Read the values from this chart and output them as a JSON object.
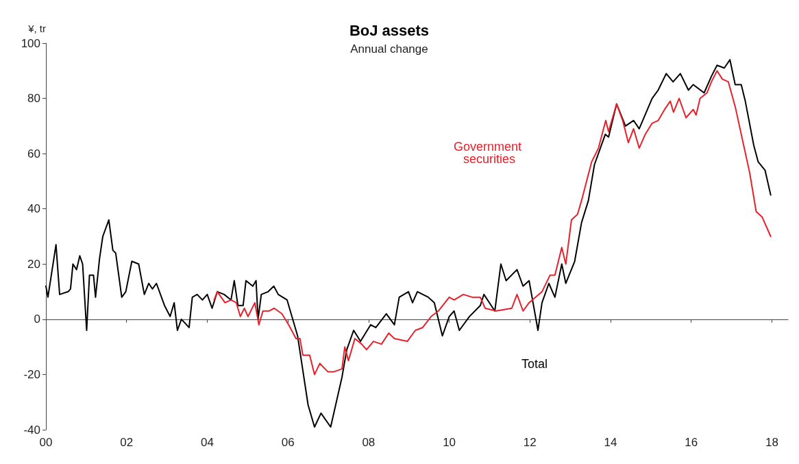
{
  "chart_data": {
    "type": "line",
    "title": "BoJ assets",
    "subtitle": "Annual change",
    "ylabel": "¥, tr",
    "xlim": [
      2000,
      2018.4
    ],
    "xticks": [
      {
        "value": 2000,
        "label": "00"
      },
      {
        "value": 2002,
        "label": "02"
      },
      {
        "value": 2004,
        "label": "04"
      },
      {
        "value": 2006,
        "label": "06"
      },
      {
        "value": 2008,
        "label": "08"
      },
      {
        "value": 2010,
        "label": "10"
      },
      {
        "value": 2012,
        "label": "12"
      },
      {
        "value": 2014,
        "label": "14"
      },
      {
        "value": 2016,
        "label": "16"
      },
      {
        "value": 2018,
        "label": "18"
      }
    ],
    "ylim": [
      -40,
      100
    ],
    "yticks": [
      -40,
      -20,
      0,
      20,
      40,
      60,
      80,
      100
    ],
    "marker": "none",
    "line_style": "solid",
    "series": [
      {
        "color": "#000000",
        "x": [
          2000.0,
          2000.05,
          2000.25,
          2000.34,
          2000.55,
          2000.61,
          2000.67,
          2000.76,
          2000.84,
          2000.91,
          2001.01,
          2001.08,
          2001.18,
          2001.23,
          2001.33,
          2001.41,
          2001.56,
          2001.66,
          2001.73,
          2001.88,
          2001.98,
          2002.13,
          2002.3,
          2002.44,
          2002.55,
          2002.64,
          2002.74,
          2002.94,
          2003.08,
          2003.18,
          2003.26,
          2003.36,
          2003.55,
          2003.63,
          2003.75,
          2003.88,
          2004.0,
          2004.12,
          2004.25,
          2004.42,
          2004.59,
          2004.67,
          2004.76,
          2004.89,
          2004.96,
          2005.13,
          2005.21,
          2005.26,
          2005.34,
          2005.51,
          2005.65,
          2005.76,
          2005.98,
          2006.24,
          2006.5,
          2006.66,
          2006.82,
          2007.06,
          2007.34,
          2007.46,
          2007.63,
          2007.8,
          2008.05,
          2008.18,
          2008.44,
          2008.64,
          2008.76,
          2008.99,
          2009.09,
          2009.21,
          2009.48,
          2009.63,
          2009.83,
          2010.0,
          2010.12,
          2010.25,
          2010.5,
          2010.77,
          2010.86,
          2011.13,
          2011.28,
          2011.41,
          2011.68,
          2011.83,
          2011.98,
          2012.2,
          2012.3,
          2012.47,
          2012.62,
          2012.79,
          2012.89,
          2013.11,
          2013.28,
          2013.45,
          2013.6,
          2013.87,
          2013.95,
          2014.15,
          2014.37,
          2014.57,
          2014.71,
          2015.03,
          2015.18,
          2015.38,
          2015.55,
          2015.73,
          2015.93,
          2016.05,
          2016.32,
          2016.5,
          2016.64,
          2016.82,
          2016.96,
          2017.09,
          2017.24,
          2017.34,
          2017.55,
          2017.66,
          2017.83,
          2017.97
        ],
        "values": [
          12,
          8,
          27,
          9,
          10,
          11,
          20,
          18,
          23,
          20,
          -4,
          16,
          16,
          8,
          22,
          30,
          36,
          25,
          24,
          8,
          10,
          21,
          20,
          9,
          13,
          11,
          13,
          5,
          1,
          6,
          -4,
          0,
          -3,
          8,
          9,
          7,
          9,
          4,
          10,
          9,
          7,
          14,
          5,
          5,
          14,
          12,
          14,
          0,
          9,
          10,
          12,
          9,
          7,
          -6,
          -31,
          -39,
          -34,
          -39,
          -21,
          -11,
          -4,
          -8,
          -2,
          -3,
          2,
          -2,
          8,
          10,
          6,
          10,
          8,
          6,
          -6,
          1,
          3,
          -4,
          1,
          5,
          9,
          3,
          20,
          14,
          18,
          12,
          14,
          -4,
          6,
          13,
          8,
          20,
          13,
          21,
          35,
          43,
          56,
          67,
          66,
          78,
          70,
          72,
          69,
          80,
          83,
          89,
          86,
          89,
          83,
          85,
          82,
          88,
          92,
          91,
          94,
          85,
          85,
          79,
          63,
          57,
          54,
          45
        ]
      },
      {
        "color": "#e8202a",
        "x": [
          2004.17,
          2004.25,
          2004.44,
          2004.59,
          2004.72,
          2004.82,
          2004.92,
          2005.01,
          2005.18,
          2005.28,
          2005.38,
          2005.53,
          2005.66,
          2005.85,
          2006.02,
          2006.2,
          2006.3,
          2006.37,
          2006.54,
          2006.66,
          2006.79,
          2006.99,
          2007.14,
          2007.34,
          2007.41,
          2007.5,
          2007.66,
          2007.83,
          2007.95,
          2008.12,
          2008.32,
          2008.5,
          2008.64,
          2008.96,
          2009.16,
          2009.34,
          2009.55,
          2009.73,
          2010.0,
          2010.12,
          2010.35,
          2010.57,
          2010.77,
          2010.89,
          2011.16,
          2011.55,
          2011.68,
          2011.83,
          2011.98,
          2012.3,
          2012.5,
          2012.62,
          2012.79,
          2012.89,
          2013.03,
          2013.18,
          2013.28,
          2013.53,
          2013.7,
          2013.88,
          2013.95,
          2014.15,
          2014.3,
          2014.44,
          2014.57,
          2014.71,
          2014.86,
          2015.03,
          2015.18,
          2015.34,
          2015.48,
          2015.56,
          2015.7,
          2015.87,
          2016.05,
          2016.12,
          2016.22,
          2016.39,
          2016.5,
          2016.64,
          2016.77,
          2016.92,
          2017.09,
          2017.27,
          2017.45,
          2017.61,
          2017.76,
          2017.97
        ],
        "values": [
          7,
          10,
          6,
          7,
          6,
          1,
          4,
          1,
          6,
          -2,
          3,
          3,
          4,
          2,
          -2,
          -7,
          -7,
          -13,
          -13,
          -20,
          -16,
          -19,
          -19,
          -18,
          -10,
          -15,
          -7,
          -9,
          -11,
          -8,
          -9,
          -5,
          -7,
          -8,
          -4,
          -3,
          1,
          3,
          8,
          7,
          9,
          8,
          8,
          4,
          3,
          4,
          9,
          3,
          6,
          10,
          16,
          16,
          26,
          20,
          36,
          38,
          43,
          57,
          62,
          72,
          68,
          78,
          72,
          64,
          69,
          62,
          67,
          71,
          72,
          76,
          79,
          75,
          80,
          73,
          76,
          74,
          80,
          82,
          86,
          90,
          87,
          86,
          77,
          65,
          53,
          39,
          37,
          30
        ]
      }
    ],
    "annotations": [
      "Total",
      "Government securities"
    ]
  }
}
